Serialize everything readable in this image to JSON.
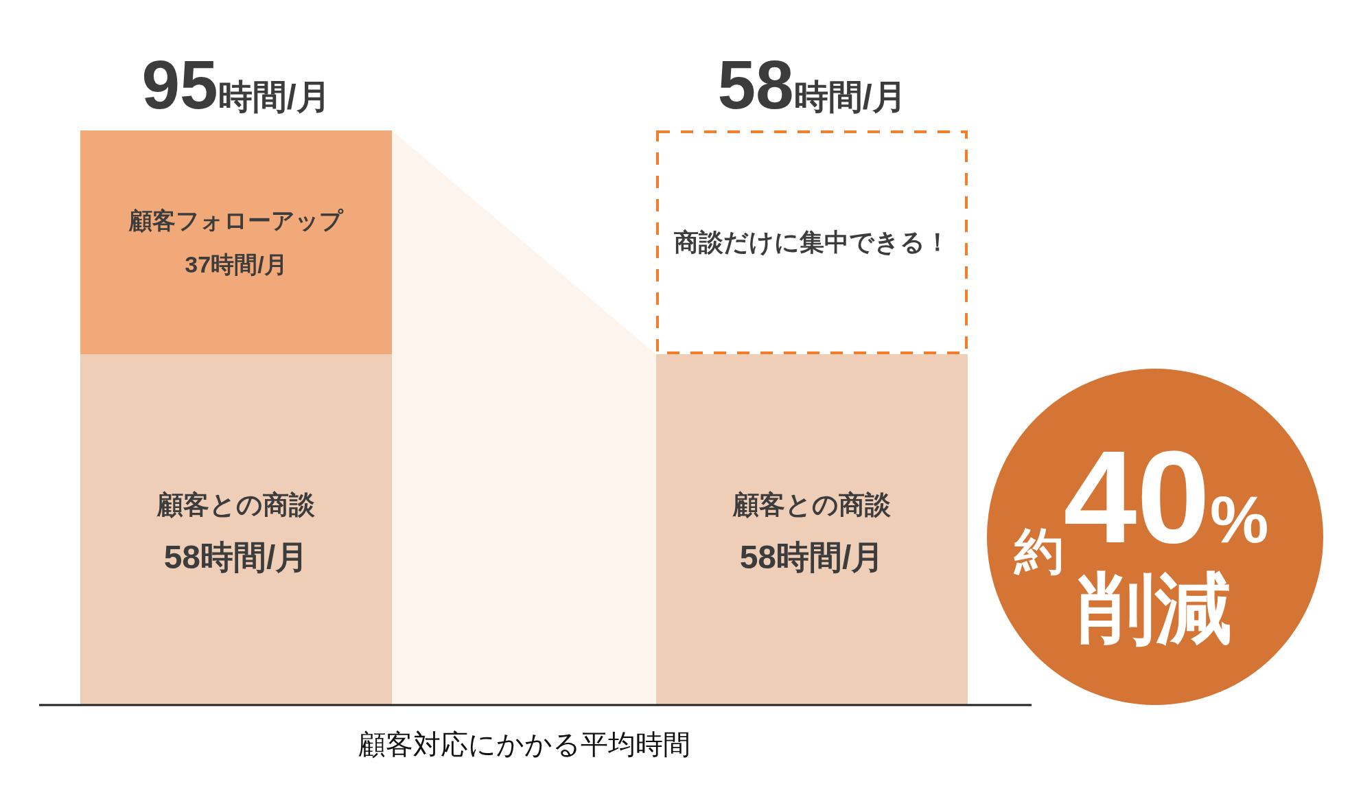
{
  "chart_data": {
    "type": "bar",
    "stacked": true,
    "categories": [
      null,
      null
    ],
    "xlabel": "顧客対応にかかる平均時間",
    "series": [
      {
        "name": "顧客との商談",
        "color": "#efceb8",
        "values": [
          58,
          58
        ],
        "value_labels": [
          "58時間/月",
          "58時間/月"
        ]
      },
      {
        "name": "顧客フォローアップ",
        "color": "#f2a97a",
        "values": [
          37,
          null
        ],
        "value_labels": [
          "37時間/月",
          null
        ]
      }
    ],
    "totals": [
      "95時間/月",
      null
    ],
    "annotations": [
      "58時間/月",
      "商談だけに集中できる！",
      "約40%削減"
    ]
  }
}
